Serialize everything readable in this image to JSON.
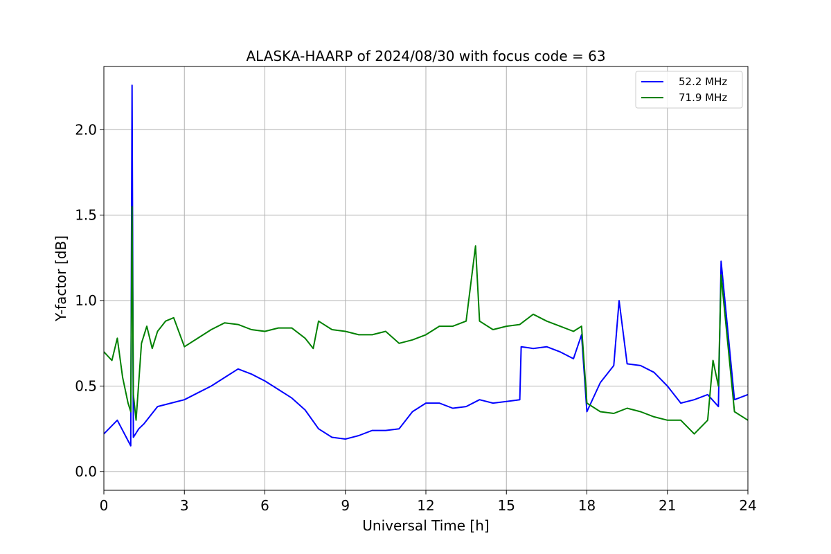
{
  "chart_data": {
    "type": "line",
    "title": "ALASKA-HAARP of 2024/08/30 with focus code = 63",
    "xlabel": "Universal Time [h]",
    "ylabel": "Y-factor [dB]",
    "xlim": [
      0,
      24
    ],
    "ylim": [
      -0.11,
      2.37
    ],
    "xticks": [
      0,
      3,
      6,
      9,
      12,
      15,
      18,
      21,
      24
    ],
    "xtick_labels": [
      "0",
      "3",
      "6",
      "9",
      "12",
      "15",
      "18",
      "21",
      "24"
    ],
    "yticks": [
      0.0,
      0.5,
      1.0,
      1.5,
      2.0
    ],
    "ytick_labels": [
      "0.0",
      "0.5",
      "1.0",
      "1.5",
      "2.0"
    ],
    "grid": true,
    "legend_position": "top-right",
    "series": [
      {
        "name": "52.2 MHz",
        "color": "#0000ff",
        "x": [
          0.0,
          0.5,
          0.9,
          1.0,
          1.05,
          1.1,
          1.3,
          1.5,
          2.0,
          2.5,
          3.0,
          3.5,
          4.0,
          4.5,
          5.0,
          5.5,
          6.0,
          6.5,
          7.0,
          7.5,
          8.0,
          8.5,
          9.0,
          9.5,
          10.0,
          10.5,
          11.0,
          11.5,
          12.0,
          12.5,
          13.0,
          13.5,
          14.0,
          14.5,
          15.0,
          15.5,
          15.55,
          16.0,
          16.5,
          17.0,
          17.5,
          17.8,
          18.0,
          18.5,
          19.0,
          19.2,
          19.5,
          20.0,
          20.5,
          21.0,
          21.5,
          22.0,
          22.5,
          22.9,
          23.0,
          23.5,
          24.0
        ],
        "values": [
          0.22,
          0.3,
          0.18,
          0.15,
          2.26,
          0.2,
          0.25,
          0.28,
          0.38,
          0.4,
          0.42,
          0.46,
          0.5,
          0.55,
          0.6,
          0.57,
          0.53,
          0.48,
          0.43,
          0.36,
          0.25,
          0.2,
          0.19,
          0.21,
          0.24,
          0.24,
          0.25,
          0.35,
          0.4,
          0.4,
          0.37,
          0.38,
          0.42,
          0.4,
          0.41,
          0.42,
          0.73,
          0.72,
          0.73,
          0.7,
          0.66,
          0.8,
          0.35,
          0.52,
          0.62,
          1.0,
          0.63,
          0.62,
          0.58,
          0.5,
          0.4,
          0.42,
          0.45,
          0.38,
          1.23,
          0.42,
          0.45
        ]
      },
      {
        "name": "71.9 MHz",
        "color": "#008000",
        "x": [
          0.0,
          0.3,
          0.5,
          0.7,
          0.9,
          1.0,
          1.05,
          1.1,
          1.2,
          1.4,
          1.6,
          1.8,
          2.0,
          2.3,
          2.6,
          3.0,
          3.5,
          4.0,
          4.5,
          5.0,
          5.5,
          6.0,
          6.5,
          7.0,
          7.5,
          7.8,
          8.0,
          8.5,
          9.0,
          9.5,
          10.0,
          10.5,
          11.0,
          11.5,
          12.0,
          12.5,
          13.0,
          13.5,
          13.85,
          14.0,
          14.5,
          15.0,
          15.5,
          16.0,
          16.5,
          17.0,
          17.5,
          17.8,
          18.0,
          18.5,
          19.0,
          19.5,
          20.0,
          20.5,
          21.0,
          21.5,
          22.0,
          22.5,
          22.7,
          22.9,
          23.0,
          23.5,
          24.0
        ],
        "values": [
          0.7,
          0.65,
          0.78,
          0.55,
          0.4,
          0.35,
          1.55,
          0.45,
          0.3,
          0.75,
          0.85,
          0.72,
          0.82,
          0.88,
          0.9,
          0.73,
          0.78,
          0.83,
          0.87,
          0.86,
          0.83,
          0.82,
          0.84,
          0.84,
          0.78,
          0.72,
          0.88,
          0.83,
          0.82,
          0.8,
          0.8,
          0.82,
          0.75,
          0.77,
          0.8,
          0.85,
          0.85,
          0.88,
          1.32,
          0.88,
          0.83,
          0.85,
          0.86,
          0.92,
          0.88,
          0.85,
          0.82,
          0.85,
          0.4,
          0.35,
          0.34,
          0.37,
          0.35,
          0.32,
          0.3,
          0.3,
          0.22,
          0.3,
          0.65,
          0.5,
          1.15,
          0.35,
          0.3
        ]
      }
    ]
  }
}
